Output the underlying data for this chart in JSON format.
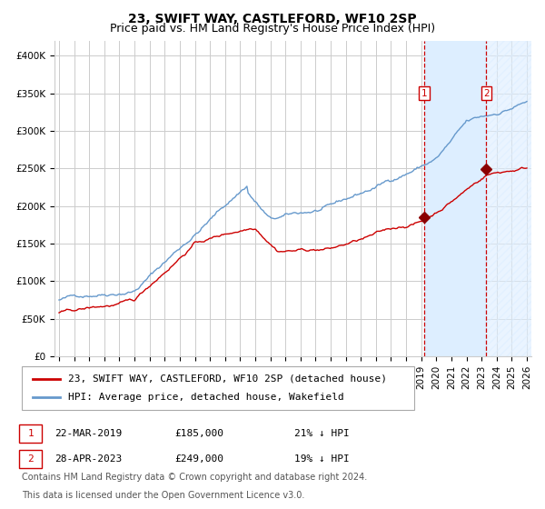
{
  "title": "23, SWIFT WAY, CASTLEFORD, WF10 2SP",
  "subtitle": "Price paid vs. HM Land Registry's House Price Index (HPI)",
  "ylim": [
    0,
    420000
  ],
  "yticks": [
    0,
    50000,
    100000,
    150000,
    200000,
    250000,
    300000,
    350000,
    400000
  ],
  "ytick_labels": [
    "£0",
    "£50K",
    "£100K",
    "£150K",
    "£200K",
    "£250K",
    "£300K",
    "£350K",
    "£400K"
  ],
  "x_start_year": 1995,
  "x_end_year": 2026,
  "hpi_color": "#6699cc",
  "price_color": "#cc0000",
  "marker_color": "#8b0000",
  "shade_color": "#ddeeff",
  "vline_color": "#cc0000",
  "grid_color": "#cccccc",
  "background_color": "#ffffff",
  "legend_label_red": "23, SWIFT WAY, CASTLEFORD, WF10 2SP (detached house)",
  "legend_label_blue": "HPI: Average price, detached house, Wakefield",
  "annotation1_num": "1",
  "annotation1_date": "22-MAR-2019",
  "annotation1_price": "£185,000",
  "annotation1_hpi": "21% ↓ HPI",
  "annotation1_year": 2019.22,
  "annotation1_value": 185000,
  "annotation2_num": "2",
  "annotation2_date": "28-APR-2023",
  "annotation2_price": "£249,000",
  "annotation2_hpi": "19% ↓ HPI",
  "annotation2_year": 2023.32,
  "annotation2_value": 249000,
  "footer_line1": "Contains HM Land Registry data © Crown copyright and database right 2024.",
  "footer_line2": "This data is licensed under the Open Government Licence v3.0.",
  "title_fontsize": 10,
  "subtitle_fontsize": 9,
  "tick_fontsize": 7.5,
  "legend_fontsize": 8,
  "footer_fontsize": 7
}
